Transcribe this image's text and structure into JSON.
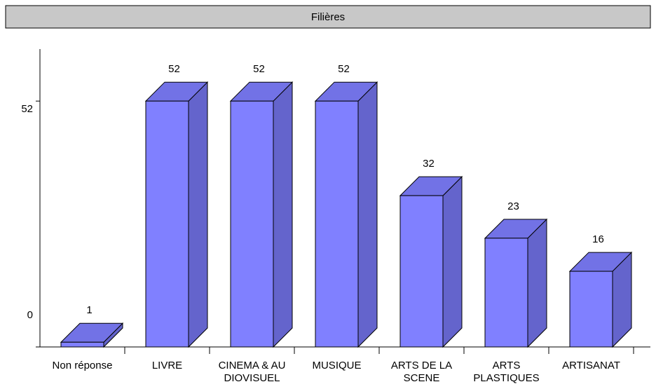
{
  "chart_data": {
    "type": "bar3d",
    "title": "Filières",
    "categories": [
      "Non réponse",
      "LIVRE",
      "CINEMA & AU\nDIOVISUEL",
      "MUSIQUE",
      "ARTS DE LA\nSCENE",
      "ARTS\nPLASTIQUES",
      "ARTISANAT"
    ],
    "values": [
      1,
      52,
      52,
      52,
      32,
      23,
      16
    ],
    "color": "#8080ff",
    "side_color": "#6464cc",
    "top_color": "#7272e6",
    "ylim": [
      0,
      63
    ],
    "yticks": [
      0,
      52
    ]
  }
}
